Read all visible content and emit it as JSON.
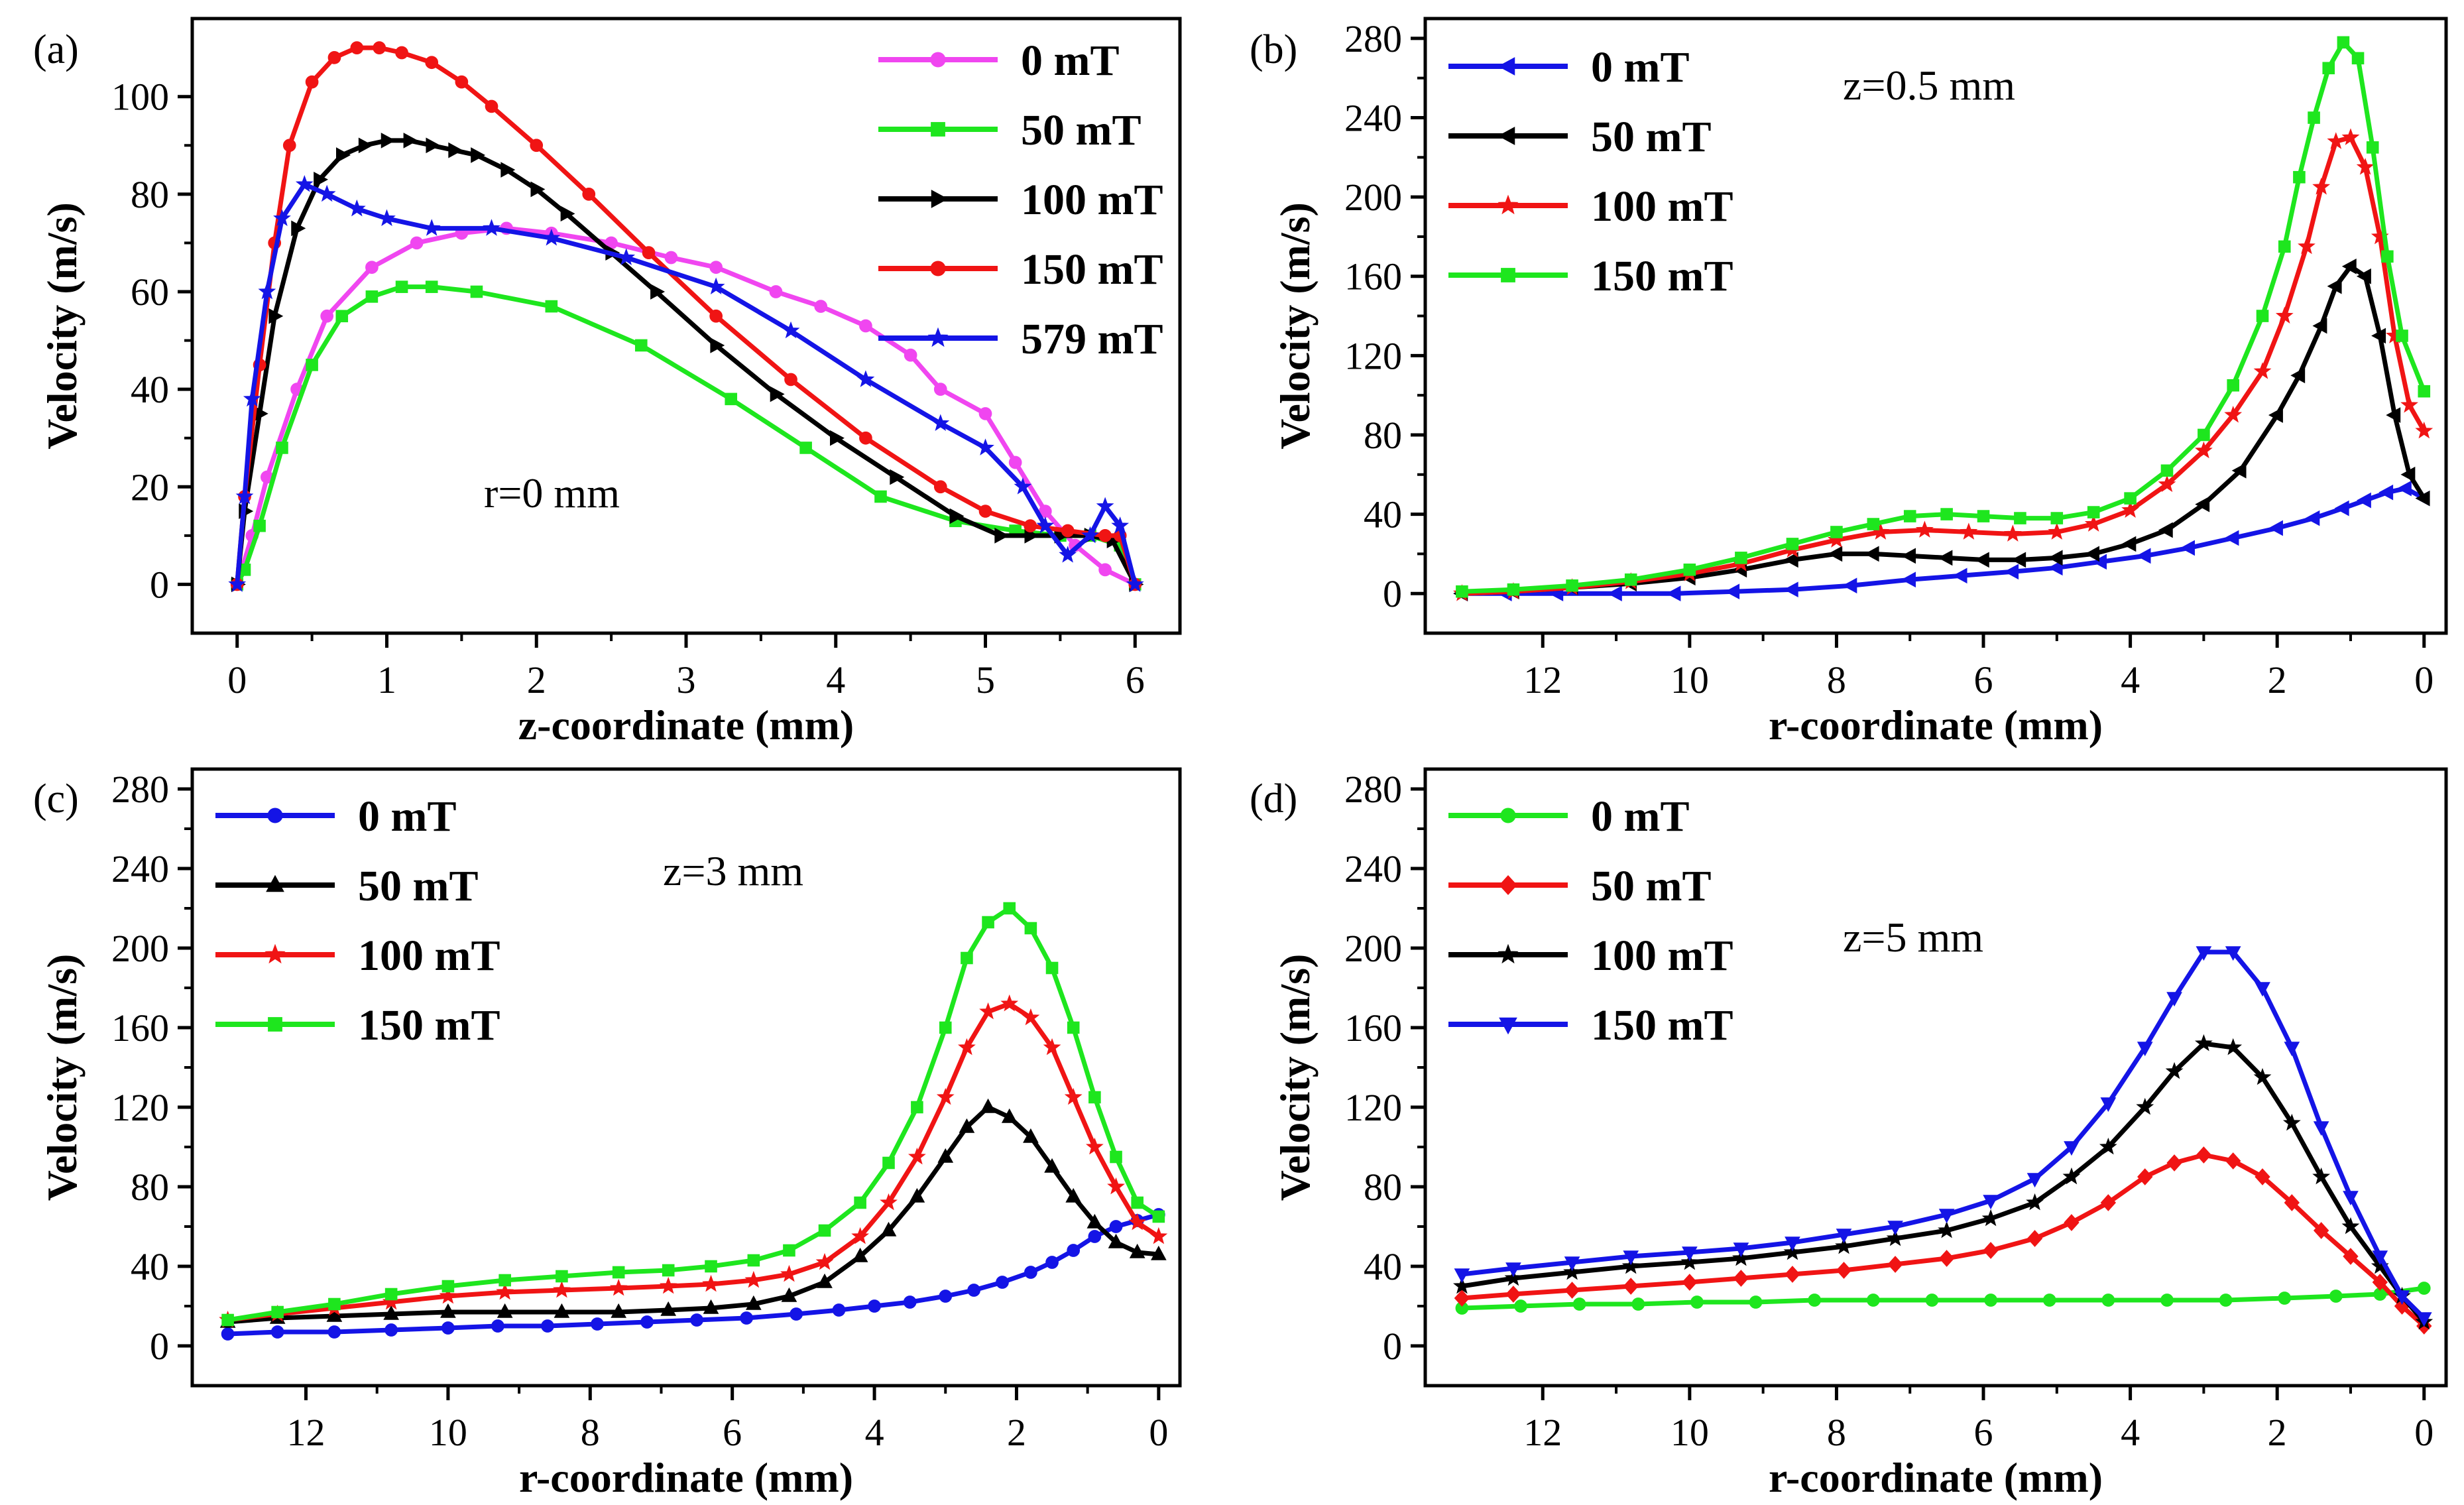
{
  "colors": {
    "magenta": "#f046f0",
    "green": "#1ee61e",
    "black": "#000000",
    "red": "#f01414",
    "blue": "#1414e6"
  },
  "chart_data": [
    {
      "type": "line",
      "panel_label": "(a)",
      "annotation": "r=0 mm",
      "xlabel": "z-coordinate (mm)",
      "ylabel": "Velocity (m/s)",
      "xlim": [
        -0.3,
        6.3
      ],
      "ylim": [
        -10,
        116
      ],
      "x_reversed": false,
      "xticks": [
        0,
        1,
        2,
        3,
        4,
        5,
        6
      ],
      "yticks": [
        0,
        20,
        40,
        60,
        80,
        100
      ],
      "legend_position": "top-right",
      "series": [
        {
          "name": "0 mT",
          "color": "#f046f0",
          "marker": "circle",
          "x": [
            0,
            0.1,
            0.2,
            0.4,
            0.6,
            0.9,
            1.2,
            1.5,
            1.8,
            2.1,
            2.5,
            2.9,
            3.2,
            3.6,
            3.9,
            4.2,
            4.5,
            4.7,
            5.0,
            5.2,
            5.4,
            5.6,
            5.8,
            6.0
          ],
          "y": [
            0,
            10,
            22,
            40,
            55,
            65,
            70,
            72,
            73,
            72,
            70,
            67,
            65,
            60,
            57,
            53,
            47,
            40,
            35,
            25,
            15,
            8,
            3,
            0
          ]
        },
        {
          "name": "50 mT",
          "color": "#1ee61e",
          "marker": "square",
          "x": [
            0,
            0.05,
            0.15,
            0.3,
            0.5,
            0.7,
            0.9,
            1.1,
            1.3,
            1.6,
            2.1,
            2.7,
            3.3,
            3.8,
            4.3,
            4.8,
            5.2,
            5.5,
            5.7,
            5.9,
            6.0
          ],
          "y": [
            0,
            3,
            12,
            28,
            45,
            55,
            59,
            61,
            61,
            60,
            57,
            49,
            38,
            28,
            18,
            13,
            11,
            10,
            10,
            8,
            0
          ]
        },
        {
          "name": "100 mT",
          "color": "#000000",
          "marker": "triangle-right",
          "x": [
            0,
            0.05,
            0.15,
            0.25,
            0.4,
            0.55,
            0.7,
            0.85,
            1.0,
            1.15,
            1.3,
            1.45,
            1.6,
            1.8,
            2.0,
            2.2,
            2.5,
            2.8,
            3.2,
            3.6,
            4.0,
            4.4,
            4.8,
            5.1,
            5.3,
            5.5,
            5.7,
            5.85,
            6.0
          ],
          "y": [
            0,
            15,
            35,
            55,
            73,
            83,
            88,
            90,
            91,
            91,
            90,
            89,
            88,
            85,
            81,
            76,
            68,
            60,
            49,
            39,
            30,
            22,
            14,
            10,
            10,
            10,
            10,
            9,
            0
          ]
        },
        {
          "name": "150 mT",
          "color": "#f01414",
          "marker": "circle",
          "x": [
            0,
            0.05,
            0.15,
            0.25,
            0.35,
            0.5,
            0.65,
            0.8,
            0.95,
            1.1,
            1.3,
            1.5,
            1.7,
            2.0,
            2.35,
            2.75,
            3.2,
            3.7,
            4.2,
            4.7,
            5.0,
            5.3,
            5.55,
            5.8,
            5.9,
            6.0
          ],
          "y": [
            0,
            18,
            45,
            70,
            90,
            103,
            108,
            110,
            110,
            109,
            107,
            103,
            98,
            90,
            80,
            68,
            55,
            42,
            30,
            20,
            15,
            12,
            11,
            10,
            10,
            0
          ]
        },
        {
          "name": "579 mT",
          "color": "#1414e6",
          "marker": "star",
          "x": [
            0,
            0.05,
            0.1,
            0.2,
            0.3,
            0.45,
            0.6,
            0.8,
            1.0,
            1.3,
            1.7,
            2.1,
            2.6,
            3.2,
            3.7,
            4.2,
            4.7,
            5.0,
            5.25,
            5.4,
            5.55,
            5.7,
            5.8,
            5.9,
            6.0
          ],
          "y": [
            0,
            18,
            38,
            60,
            75,
            82,
            80,
            77,
            75,
            73,
            73,
            71,
            67,
            61,
            52,
            42,
            33,
            28,
            20,
            12,
            6,
            10,
            16,
            12,
            0
          ]
        }
      ]
    },
    {
      "type": "line",
      "panel_label": "(b)",
      "annotation": "z=0.5 mm",
      "xlabel": "r-coordinate (mm)",
      "ylabel": "Velocity (m/s)",
      "xlim": [
        13.6,
        -0.3
      ],
      "ylim": [
        -20,
        290
      ],
      "x_reversed": true,
      "xticks": [
        12,
        10,
        8,
        6,
        4,
        2,
        0
      ],
      "yticks": [
        0,
        40,
        80,
        120,
        160,
        200,
        240,
        280
      ],
      "legend_position": "top-left",
      "series": [
        {
          "name": "0 mT",
          "color": "#1414e6",
          "marker": "triangle-left",
          "x": [
            13.1,
            12.5,
            11.8,
            11.0,
            10.2,
            9.4,
            8.6,
            7.8,
            7.0,
            6.3,
            5.6,
            5.0,
            4.4,
            3.8,
            3.2,
            2.6,
            2.0,
            1.5,
            1.1,
            0.8,
            0.5,
            0.25,
            0
          ],
          "y": [
            0,
            0,
            0,
            0,
            0,
            1,
            2,
            4,
            7,
            9,
            11,
            13,
            16,
            19,
            23,
            28,
            33,
            38,
            43,
            47,
            51,
            53,
            48
          ]
        },
        {
          "name": "50 mT",
          "color": "#000000",
          "marker": "triangle-left",
          "x": [
            13.1,
            12.4,
            11.6,
            10.8,
            10.0,
            9.3,
            8.6,
            8.0,
            7.5,
            7.0,
            6.5,
            6.0,
            5.5,
            5.0,
            4.5,
            4.0,
            3.5,
            3.0,
            2.5,
            2.0,
            1.7,
            1.4,
            1.2,
            1.0,
            0.8,
            0.6,
            0.4,
            0.2,
            0
          ],
          "y": [
            0,
            1,
            3,
            5,
            8,
            12,
            17,
            20,
            20,
            19,
            18,
            17,
            17,
            18,
            20,
            25,
            32,
            45,
            62,
            90,
            110,
            135,
            155,
            165,
            160,
            130,
            90,
            60,
            48
          ]
        },
        {
          "name": "100 mT",
          "color": "#f01414",
          "marker": "star",
          "x": [
            13.1,
            12.4,
            11.6,
            10.8,
            10.0,
            9.3,
            8.6,
            8.0,
            7.4,
            6.8,
            6.2,
            5.6,
            5.0,
            4.5,
            4.0,
            3.5,
            3.0,
            2.6,
            2.2,
            1.9,
            1.6,
            1.4,
            1.2,
            1.0,
            0.8,
            0.6,
            0.4,
            0.2,
            0
          ],
          "y": [
            0,
            1,
            3,
            6,
            10,
            15,
            22,
            27,
            31,
            32,
            31,
            30,
            31,
            35,
            42,
            55,
            72,
            90,
            112,
            140,
            175,
            205,
            228,
            230,
            215,
            180,
            130,
            95,
            82
          ]
        },
        {
          "name": "150 mT",
          "color": "#1ee61e",
          "marker": "square",
          "x": [
            13.1,
            12.4,
            11.6,
            10.8,
            10.0,
            9.3,
            8.6,
            8.0,
            7.5,
            7.0,
            6.5,
            6.0,
            5.5,
            5.0,
            4.5,
            4.0,
            3.5,
            3.0,
            2.6,
            2.2,
            1.9,
            1.7,
            1.5,
            1.3,
            1.1,
            0.9,
            0.7,
            0.5,
            0.3,
            0
          ],
          "y": [
            1,
            2,
            4,
            7,
            12,
            18,
            25,
            31,
            35,
            39,
            40,
            39,
            38,
            38,
            41,
            48,
            62,
            80,
            105,
            140,
            175,
            210,
            240,
            265,
            278,
            270,
            225,
            170,
            130,
            102
          ]
        }
      ]
    },
    {
      "type": "line",
      "panel_label": "(c)",
      "annotation": "z=3 mm",
      "xlabel": "r-coordinate (mm)",
      "ylabel": "Velocity (m/s)",
      "xlim": [
        13.6,
        -0.3
      ],
      "ylim": [
        -20,
        290
      ],
      "x_reversed": true,
      "xticks": [
        12,
        10,
        8,
        6,
        4,
        2,
        0
      ],
      "yticks": [
        0,
        40,
        80,
        120,
        160,
        200,
        240,
        280
      ],
      "legend_position": "top-left",
      "series": [
        {
          "name": "0 mT",
          "color": "#1414e6",
          "marker": "circle",
          "x": [
            13.1,
            12.4,
            11.6,
            10.8,
            10.0,
            9.3,
            8.6,
            7.9,
            7.2,
            6.5,
            5.8,
            5.1,
            4.5,
            4.0,
            3.5,
            3.0,
            2.6,
            2.2,
            1.8,
            1.5,
            1.2,
            0.9,
            0.6,
            0.3,
            0
          ],
          "y": [
            6,
            7,
            7,
            8,
            9,
            10,
            10,
            11,
            12,
            13,
            14,
            16,
            18,
            20,
            22,
            25,
            28,
            32,
            37,
            42,
            48,
            55,
            60,
            63,
            66
          ]
        },
        {
          "name": "50 mT",
          "color": "#000000",
          "marker": "triangle-up",
          "x": [
            13.1,
            12.4,
            11.6,
            10.8,
            10.0,
            9.2,
            8.4,
            7.6,
            6.9,
            6.3,
            5.7,
            5.2,
            4.7,
            4.2,
            3.8,
            3.4,
            3.0,
            2.7,
            2.4,
            2.1,
            1.8,
            1.5,
            1.2,
            0.9,
            0.6,
            0.3,
            0
          ],
          "y": [
            12,
            14,
            15,
            16,
            17,
            17,
            17,
            17,
            18,
            19,
            21,
            25,
            32,
            45,
            58,
            75,
            95,
            110,
            120,
            115,
            105,
            90,
            75,
            62,
            52,
            47,
            46
          ]
        },
        {
          "name": "100 mT",
          "color": "#f01414",
          "marker": "star",
          "x": [
            13.1,
            12.4,
            11.6,
            10.8,
            10.0,
            9.2,
            8.4,
            7.6,
            6.9,
            6.3,
            5.7,
            5.2,
            4.7,
            4.2,
            3.8,
            3.4,
            3.0,
            2.7,
            2.4,
            2.1,
            1.8,
            1.5,
            1.2,
            0.9,
            0.6,
            0.3,
            0
          ],
          "y": [
            13,
            16,
            19,
            22,
            25,
            27,
            28,
            29,
            30,
            31,
            33,
            36,
            42,
            55,
            72,
            95,
            125,
            150,
            168,
            172,
            165,
            150,
            125,
            100,
            80,
            62,
            55
          ]
        },
        {
          "name": "150 mT",
          "color": "#1ee61e",
          "marker": "square",
          "x": [
            13.1,
            12.4,
            11.6,
            10.8,
            10.0,
            9.2,
            8.4,
            7.6,
            6.9,
            6.3,
            5.7,
            5.2,
            4.7,
            4.2,
            3.8,
            3.4,
            3.0,
            2.7,
            2.4,
            2.1,
            1.8,
            1.5,
            1.2,
            0.9,
            0.6,
            0.3,
            0
          ],
          "y": [
            13,
            17,
            21,
            26,
            30,
            33,
            35,
            37,
            38,
            40,
            43,
            48,
            58,
            72,
            92,
            120,
            160,
            195,
            213,
            220,
            210,
            190,
            160,
            125,
            95,
            72,
            65
          ]
        }
      ]
    },
    {
      "type": "line",
      "panel_label": "(d)",
      "annotation": "z=5 mm",
      "xlabel": "r-coordinate (mm)",
      "ylabel": "Velocity (m/s)",
      "xlim": [
        13.6,
        -0.3
      ],
      "ylim": [
        -20,
        290
      ],
      "x_reversed": true,
      "xticks": [
        12,
        10,
        8,
        6,
        4,
        2,
        0
      ],
      "yticks": [
        0,
        40,
        80,
        120,
        160,
        200,
        240,
        280
      ],
      "legend_position": "top-left",
      "series": [
        {
          "name": "0 mT",
          "color": "#1ee61e",
          "marker": "circle",
          "x": [
            13.1,
            12.3,
            11.5,
            10.7,
            9.9,
            9.1,
            8.3,
            7.5,
            6.7,
            5.9,
            5.1,
            4.3,
            3.5,
            2.7,
            1.9,
            1.2,
            0.6,
            0
          ],
          "y": [
            19,
            20,
            21,
            21,
            22,
            22,
            23,
            23,
            23,
            23,
            23,
            23,
            23,
            23,
            24,
            25,
            26,
            29
          ]
        },
        {
          "name": "50 mT",
          "color": "#f01414",
          "marker": "diamond",
          "x": [
            13.1,
            12.4,
            11.6,
            10.8,
            10.0,
            9.3,
            8.6,
            7.9,
            7.2,
            6.5,
            5.9,
            5.3,
            4.8,
            4.3,
            3.8,
            3.4,
            3.0,
            2.6,
            2.2,
            1.8,
            1.4,
            1.0,
            0.6,
            0.3,
            0
          ],
          "y": [
            24,
            26,
            28,
            30,
            32,
            34,
            36,
            38,
            41,
            44,
            48,
            54,
            62,
            72,
            85,
            92,
            96,
            93,
            85,
            72,
            58,
            45,
            32,
            20,
            10
          ]
        },
        {
          "name": "100 mT",
          "color": "#000000",
          "marker": "star",
          "x": [
            13.1,
            12.4,
            11.6,
            10.8,
            10.0,
            9.3,
            8.6,
            7.9,
            7.2,
            6.5,
            5.9,
            5.3,
            4.8,
            4.3,
            3.8,
            3.4,
            3.0,
            2.6,
            2.2,
            1.8,
            1.4,
            1.0,
            0.6,
            0.3,
            0
          ],
          "y": [
            30,
            34,
            37,
            40,
            42,
            44,
            47,
            50,
            54,
            58,
            64,
            72,
            85,
            100,
            120,
            138,
            152,
            150,
            135,
            112,
            85,
            60,
            40,
            25,
            12
          ]
        },
        {
          "name": "150 mT",
          "color": "#1414e6",
          "marker": "triangle-down",
          "x": [
            13.1,
            12.4,
            11.6,
            10.8,
            10.0,
            9.3,
            8.6,
            7.9,
            7.2,
            6.5,
            5.9,
            5.3,
            4.8,
            4.3,
            3.8,
            3.4,
            3.0,
            2.6,
            2.2,
            1.8,
            1.4,
            1.0,
            0.6,
            0.3,
            0
          ],
          "y": [
            36,
            39,
            42,
            45,
            47,
            49,
            52,
            56,
            60,
            66,
            73,
            84,
            100,
            122,
            150,
            175,
            198,
            198,
            180,
            150,
            110,
            75,
            45,
            25,
            14
          ]
        }
      ]
    }
  ]
}
